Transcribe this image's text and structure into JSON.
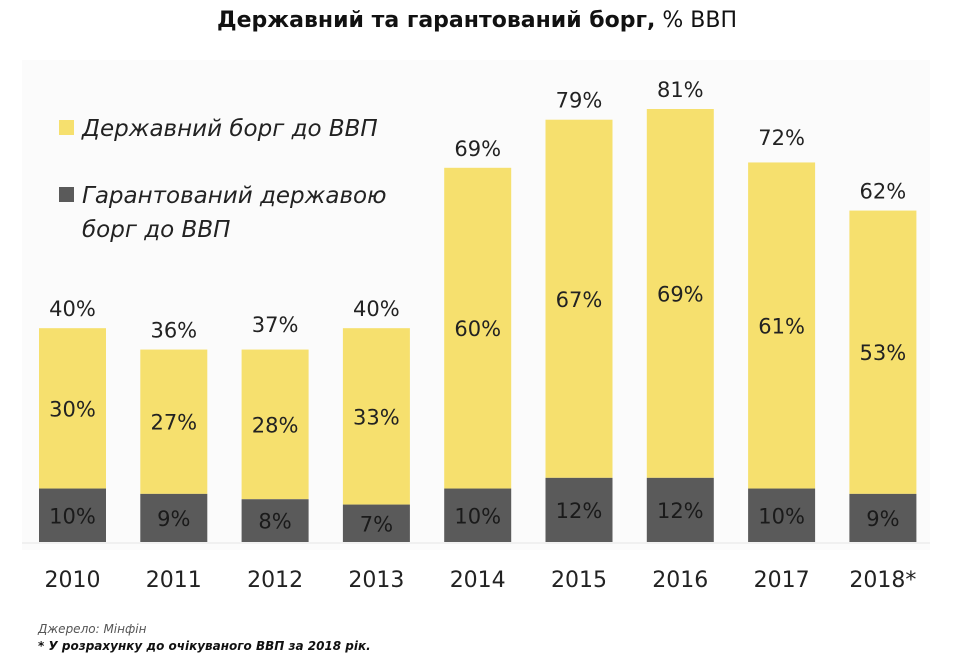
{
  "chart_data": {
    "type": "bar",
    "stacked": true,
    "title": "Державний та гарантований борг,",
    "title_unit": "% ВВП",
    "categories": [
      "2010",
      "2011",
      "2012",
      "2013",
      "2014",
      "2015",
      "2016",
      "2017",
      "2018*"
    ],
    "series": [
      {
        "name": "Гарантований державою борг до ВВП",
        "color": "#5a5a5a",
        "values": [
          10,
          9,
          8,
          7,
          10,
          12,
          12,
          10,
          9
        ]
      },
      {
        "name": "Державний борг до ВВП",
        "color": "#f6e06e",
        "values": [
          30,
          27,
          28,
          33,
          60,
          67,
          69,
          61,
          53
        ]
      }
    ],
    "totals": [
      40,
      36,
      37,
      40,
      69,
      79,
      81,
      72,
      62
    ],
    "value_suffix": "%",
    "legend_position": "top-left",
    "grid": false,
    "ylim": [
      0,
      85
    ]
  },
  "footer": {
    "source": "Джерело: Мінфін",
    "note": "* У розрахунку до очікуваного ВВП за 2018 рік."
  }
}
